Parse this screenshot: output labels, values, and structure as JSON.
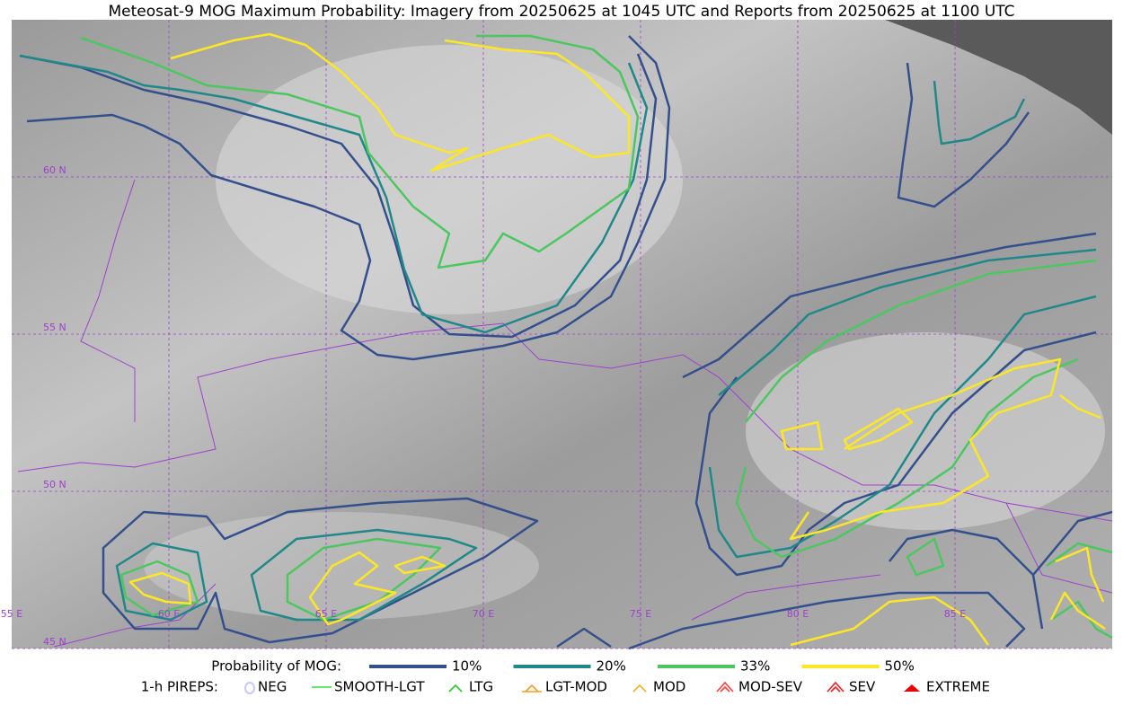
{
  "header": {
    "title": "Meteosat-9 MOG Maximum Probability: Imagery from 20250625 at 1045 UTC and Reports from 20250625 at 1100 UTC"
  },
  "map": {
    "lat_labels": [
      "60 N",
      "55 N",
      "50 N",
      "45 N"
    ],
    "lon_labels": [
      "55 E",
      "60 E",
      "65 E",
      "70 E",
      "75 E",
      "80 E",
      "85 E"
    ]
  },
  "legend": {
    "probability": {
      "title": "Probability of MOG:",
      "items": [
        {
          "label": "10%",
          "color": "#34508c"
        },
        {
          "label": "20%",
          "color": "#21888a"
        },
        {
          "label": "33%",
          "color": "#4cc75f"
        },
        {
          "label": "50%",
          "color": "#fde725"
        }
      ]
    },
    "pireps": {
      "title": "1-h PIREPS:",
      "items": [
        {
          "label": "NEG",
          "color": "#c8c8ff"
        },
        {
          "label": "SMOOTH-LGT",
          "color": "#33dd33"
        },
        {
          "label": "LTG",
          "color": "#22cc22"
        },
        {
          "label": "LGT-MOD",
          "color": "#f0a020"
        },
        {
          "label": "MOD",
          "color": "#f0b030"
        },
        {
          "label": "MOD-SEV",
          "color": "#ff4040"
        },
        {
          "label": "SEV",
          "color": "#ee2020"
        },
        {
          "label": "EXTREME",
          "color": "#ee0000"
        }
      ]
    }
  }
}
